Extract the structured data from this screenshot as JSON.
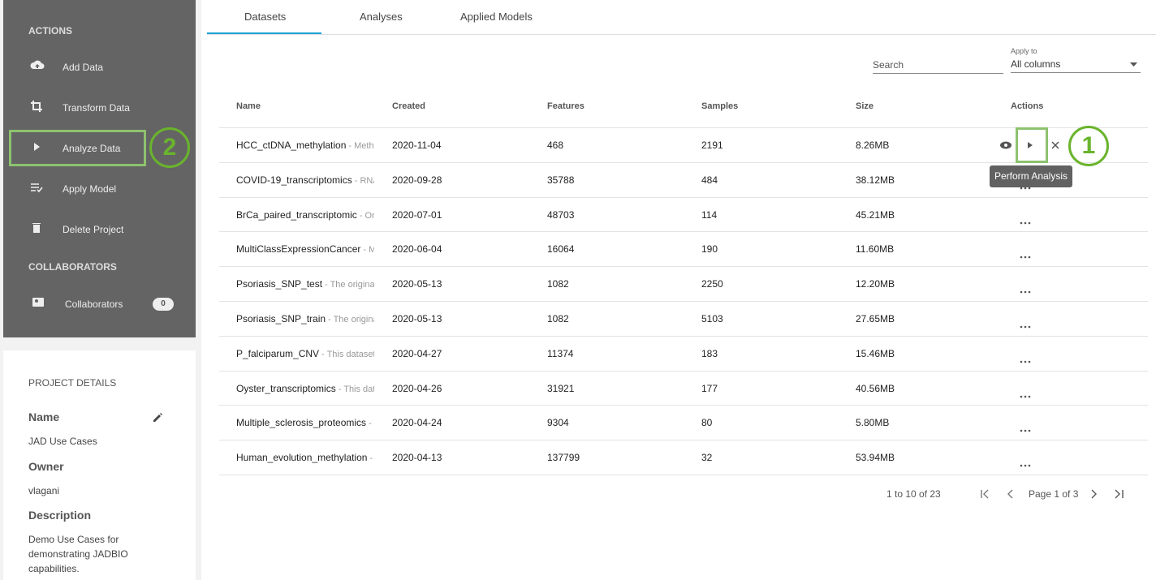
{
  "sidebar": {
    "actions_heading": "ACTIONS",
    "actions": [
      "Add Data",
      "Transform Data",
      "Analyze Data",
      "Apply Model",
      "Delete Project"
    ],
    "collaborators_heading": "COLLABORATORS",
    "collaborators_label": "Collaborators",
    "collaborators_count": 0
  },
  "project_details": {
    "heading": "PROJECT DETAILS",
    "name_label": "Name",
    "name": "JAD Use Cases",
    "owner_label": "Owner",
    "owner": "vlagani",
    "description_label": "Description",
    "description": "Demo Use Cases for demonstrating JADBIO capabilities."
  },
  "tabs": [
    "Datasets",
    "Analyses",
    "Applied Models"
  ],
  "search": {
    "placeholder": "Search",
    "apply_to_label": "Apply to",
    "apply_to": "All columns"
  },
  "table": {
    "columns": [
      "Name",
      "Created",
      "Features",
      "Samples",
      "Size",
      "Actions"
    ],
    "rows": [
      {
        "name": "HCC_ctDNA_methylation",
        "description": "- Methyl",
        "created": "2020-11-04",
        "features": 468,
        "samples": 2191,
        "size": "8.26MB"
      },
      {
        "name": "COVID-19_transcriptomics",
        "description": "- RNA-",
        "created": "2020-09-28",
        "features": 35788,
        "samples": 484,
        "size": "38.12MB"
      },
      {
        "name": "BrCa_paired_transcriptomic",
        "description": "- Orig",
        "created": "2020-07-01",
        "features": 48703,
        "samples": 114,
        "size": "45.21MB"
      },
      {
        "name": "MultiClassExpressionCancer",
        "description": "- Mu",
        "created": "2020-06-04",
        "features": 16064,
        "samples": 190,
        "size": "11.60MB"
      },
      {
        "name": "Psoriasis_SNP_test",
        "description": "- The original I",
        "created": "2020-05-13",
        "features": 1082,
        "samples": 2250,
        "size": "12.20MB"
      },
      {
        "name": "Psoriasis_SNP_train",
        "description": "- The original",
        "created": "2020-05-13",
        "features": 1082,
        "samples": 5103,
        "size": "27.65MB"
      },
      {
        "name": "P_falciparum_CNV",
        "description": "- This dataset c",
        "created": "2020-04-27",
        "features": 11374,
        "samples": 183,
        "size": "15.46MB"
      },
      {
        "name": "Oyster_transcriptomics",
        "description": "- This data",
        "created": "2020-04-26",
        "features": 31921,
        "samples": 177,
        "size": "40.56MB"
      },
      {
        "name": "Multiple_sclerosis_proteomics",
        "description": "- T",
        "created": "2020-04-24",
        "features": 9304,
        "samples": 80,
        "size": "5.80MB"
      },
      {
        "name": "Human_evolution_methylation",
        "description": "- T",
        "created": "2020-04-13",
        "features": 137799,
        "samples": 32,
        "size": "53.94MB"
      }
    ]
  },
  "tooltip": "Perform Analysis",
  "callouts": [
    "1",
    "2"
  ],
  "pagination": {
    "range": "1 to 10 of 23",
    "page": "Page 1 of 3"
  }
}
